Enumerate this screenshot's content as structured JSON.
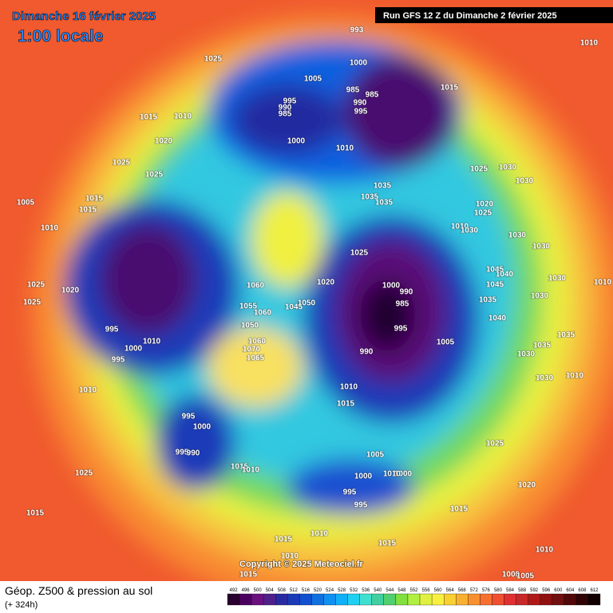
{
  "header": {
    "date": "Dimanche 16 février 2025",
    "time": "1:00 locale",
    "run": "Run GFS 12 Z du Dimanche 2 février 2025"
  },
  "map": {
    "pressure_labels": [
      "993",
      "1010",
      "1025",
      "1000",
      "1005",
      "985",
      "985",
      "1015",
      "995",
      "990",
      "985",
      "990",
      "995",
      "1015",
      "1010",
      "1020",
      "1000",
      "1010",
      "1025",
      "1025",
      "1025",
      "1030",
      "1030",
      "1035",
      "1035",
      "1035",
      "1015",
      "1005",
      "1015",
      "1020",
      "1025",
      "1010",
      "1010",
      "1030",
      "1030",
      "1030",
      "1025",
      "1060",
      "1020",
      "1000",
      "990",
      "985",
      "1025",
      "1020",
      "1045",
      "1040",
      "1045",
      "1030",
      "1010",
      "1025",
      "1055",
      "1045",
      "1050",
      "1060",
      "1035",
      "1030",
      "995",
      "1010",
      "1000",
      "1050",
      "1040",
      "995",
      "1060",
      "1070",
      "1005",
      "1035",
      "990",
      "1030",
      "995",
      "1065",
      "1035",
      "1030",
      "1010",
      "1010",
      "1010",
      "1015",
      "995",
      "1000",
      "995",
      "990",
      "1015",
      "1010",
      "1025",
      "1005",
      "1000",
      "1000",
      "1010",
      "1025",
      "1020",
      "995",
      "995",
      "1015",
      "1015",
      "1010",
      "1015",
      "1015",
      "1010",
      "1010",
      "1015",
      "1000",
      "1005"
    ],
    "copyright": "Copyright © 2025 Meteociel.fr"
  },
  "legend": {
    "title": "Géop. Z500 & pression au sol",
    "subtitle": "(+ 324h)",
    "scale": [
      492,
      496,
      500,
      504,
      508,
      512,
      516,
      520,
      524,
      528,
      532,
      536,
      540,
      544,
      548,
      552,
      556,
      560,
      564,
      568,
      572,
      576,
      580,
      584,
      588,
      592,
      596,
      600,
      604,
      608,
      612
    ]
  }
}
